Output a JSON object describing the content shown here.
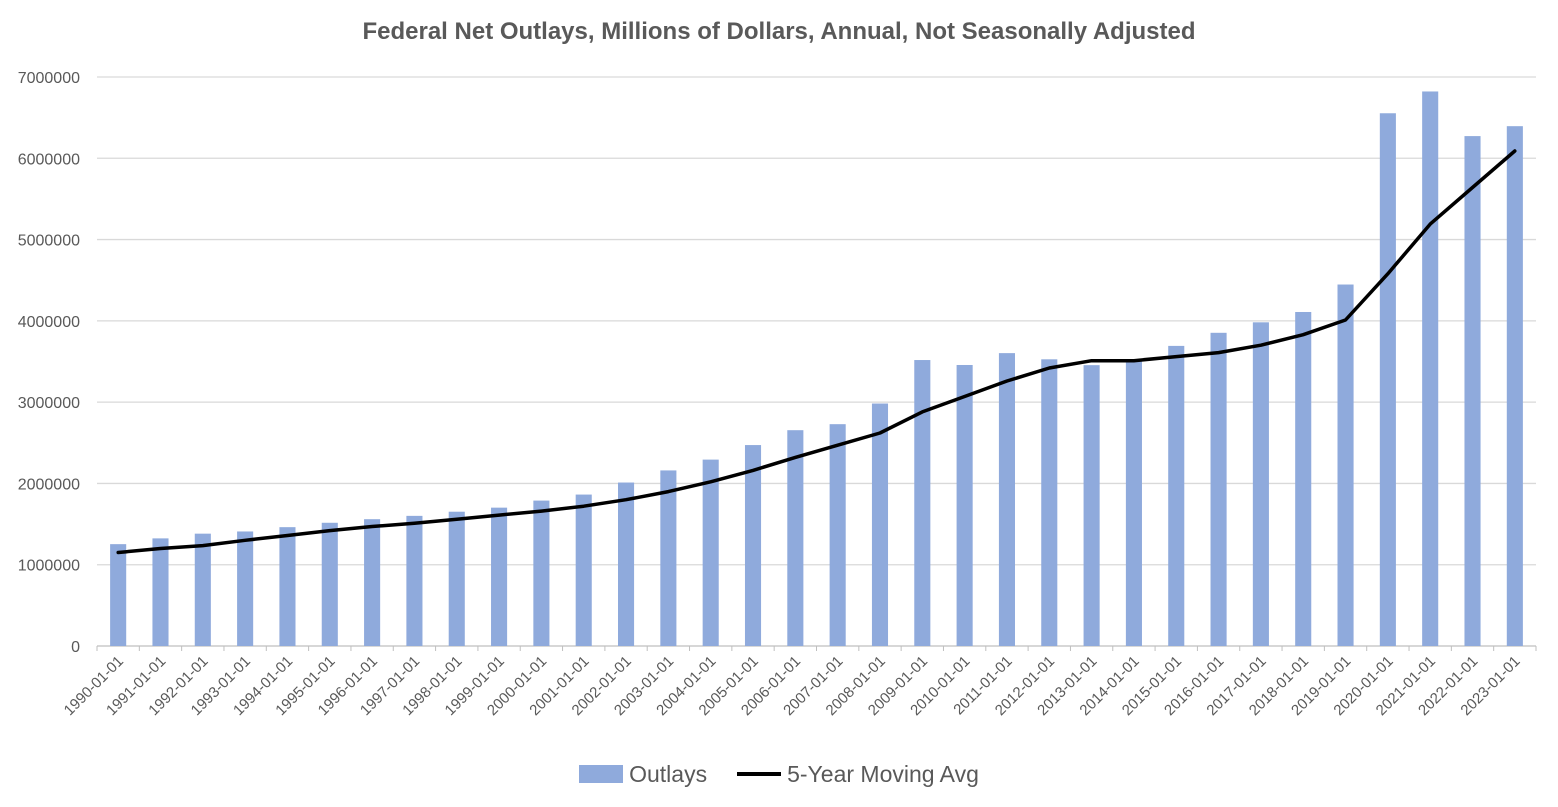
{
  "colors": {
    "bar": "#8faadc",
    "line": "#000000",
    "grid": "#d9d9d9",
    "axis": "#bfbfbf",
    "text": "#595959"
  },
  "chart_data": {
    "type": "bar",
    "title": "Federal Net Outlays, Millions of Dollars, Annual, Not Seasonally Adjusted",
    "xlabel": "",
    "ylabel": "",
    "ylim": [
      0,
      7000000
    ],
    "yticks": [
      "0",
      "1000000",
      "2000000",
      "3000000",
      "4000000",
      "5000000",
      "6000000",
      "7000000"
    ],
    "grid": true,
    "legend_position": "bottom",
    "categories": [
      "1990-01-01",
      "1991-01-01",
      "1992-01-01",
      "1993-01-01",
      "1994-01-01",
      "1995-01-01",
      "1996-01-01",
      "1997-01-01",
      "1998-01-01",
      "1999-01-01",
      "2000-01-01",
      "2001-01-01",
      "2002-01-01",
      "2003-01-01",
      "2004-01-01",
      "2005-01-01",
      "2006-01-01",
      "2007-01-01",
      "2008-01-01",
      "2009-01-01",
      "2010-01-01",
      "2011-01-01",
      "2012-01-01",
      "2013-01-01",
      "2014-01-01",
      "2015-01-01",
      "2016-01-01",
      "2017-01-01",
      "2018-01-01",
      "2019-01-01",
      "2020-01-01",
      "2021-01-01",
      "2022-01-01",
      "2023-01-01"
    ],
    "series": [
      {
        "name": "Outlays",
        "type": "bar",
        "values": [
          1253000,
          1324000,
          1382000,
          1409000,
          1462000,
          1516000,
          1560000,
          1601000,
          1652000,
          1702000,
          1789000,
          1863000,
          2011000,
          2160000,
          2293000,
          2472000,
          2655000,
          2729000,
          2983000,
          3518000,
          3457000,
          3603000,
          3527000,
          3455000,
          3506000,
          3692000,
          3853000,
          3982000,
          4109000,
          4447000,
          6554000,
          6822000,
          6273000,
          6395000
        ]
      },
      {
        "name": "5-Year Moving Avg",
        "type": "line",
        "values": [
          1150000,
          1200000,
          1235000,
          1300000,
          1360000,
          1420000,
          1470000,
          1510000,
          1560000,
          1610000,
          1660000,
          1720000,
          1800000,
          1900000,
          2020000,
          2160000,
          2320000,
          2470000,
          2620000,
          2880000,
          3070000,
          3260000,
          3420000,
          3510000,
          3510000,
          3560000,
          3610000,
          3700000,
          3830000,
          4010000,
          4580000,
          5190000,
          5640000,
          6090000
        ]
      }
    ]
  }
}
